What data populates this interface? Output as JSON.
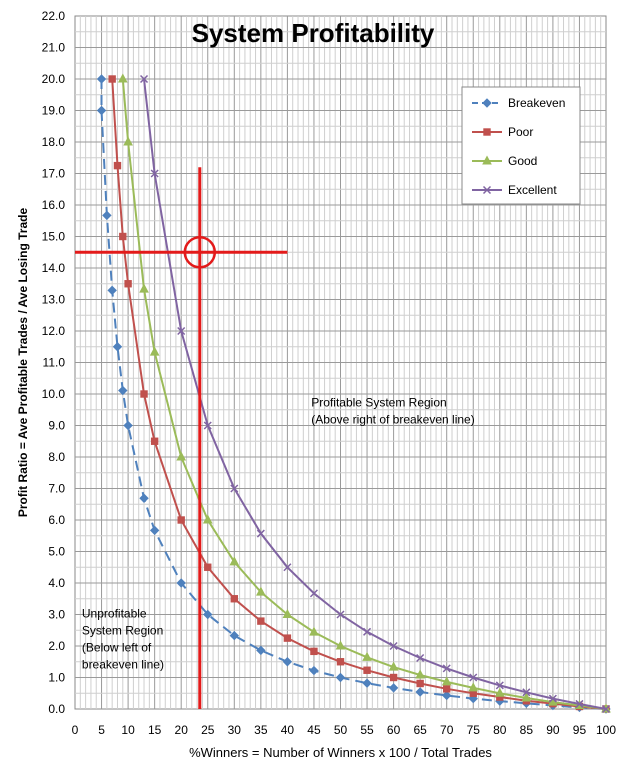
{
  "chart_data": {
    "type": "line",
    "title": "System Profitability",
    "xlabel": "%Winners = Number of Winners x 100 / Total Trades",
    "ylabel": "Profit Ratio  = Ave Profitable Trades / Ave Losing Trade",
    "xlim": [
      0,
      100
    ],
    "ylim": [
      0,
      22
    ],
    "x_ticks": [
      0,
      5,
      10,
      15,
      20,
      25,
      30,
      35,
      40,
      45,
      50,
      55,
      60,
      65,
      70,
      75,
      80,
      85,
      90,
      95,
      100
    ],
    "y_ticks": [
      0,
      1,
      2,
      3,
      4,
      5,
      6,
      7,
      8,
      9,
      10,
      11,
      12,
      13,
      14,
      15,
      16,
      17,
      18,
      19,
      20,
      21,
      22
    ],
    "y_tick_decimals": 1,
    "grid": true,
    "legend_position": "top-right",
    "series": [
      {
        "name": "Breakeven",
        "color": "#4f81bd",
        "marker": "diamond",
        "dashed": true,
        "points": [
          [
            5,
            20.0
          ],
          [
            5,
            19.0
          ],
          [
            6,
            15.67
          ],
          [
            7,
            13.29
          ],
          [
            8,
            11.5
          ],
          [
            9,
            10.11
          ],
          [
            10,
            9.0
          ],
          [
            13,
            6.69
          ],
          [
            15,
            5.67
          ],
          [
            20,
            4.0
          ],
          [
            25,
            3.0
          ],
          [
            30,
            2.33
          ],
          [
            35,
            1.86
          ],
          [
            40,
            1.5
          ],
          [
            45,
            1.22
          ],
          [
            50,
            1.0
          ],
          [
            55,
            0.82
          ],
          [
            60,
            0.67
          ],
          [
            65,
            0.54
          ],
          [
            70,
            0.43
          ],
          [
            75,
            0.33
          ],
          [
            80,
            0.25
          ],
          [
            85,
            0.18
          ],
          [
            90,
            0.11
          ],
          [
            95,
            0.05
          ],
          [
            100,
            0.0
          ]
        ]
      },
      {
        "name": "Poor",
        "color": "#c0504d",
        "marker": "square",
        "dashed": false,
        "points": [
          [
            7,
            20.0
          ],
          [
            8,
            17.25
          ],
          [
            9,
            15.0
          ],
          [
            10,
            13.5
          ],
          [
            13,
            10.0
          ],
          [
            15,
            8.5
          ],
          [
            20,
            6.0
          ],
          [
            25,
            4.5
          ],
          [
            30,
            3.5
          ],
          [
            35,
            2.79
          ],
          [
            40,
            2.25
          ],
          [
            45,
            1.83
          ],
          [
            50,
            1.5
          ],
          [
            55,
            1.23
          ],
          [
            60,
            1.0
          ],
          [
            65,
            0.81
          ],
          [
            70,
            0.64
          ],
          [
            75,
            0.5
          ],
          [
            80,
            0.38
          ],
          [
            85,
            0.26
          ],
          [
            90,
            0.17
          ],
          [
            95,
            0.08
          ],
          [
            100,
            0.0
          ]
        ]
      },
      {
        "name": "Good",
        "color": "#9bbb59",
        "marker": "triangle",
        "dashed": false,
        "points": [
          [
            9,
            20.0
          ],
          [
            10,
            18.0
          ],
          [
            13,
            13.33
          ],
          [
            15,
            11.33
          ],
          [
            20,
            8.0
          ],
          [
            25,
            6.0
          ],
          [
            30,
            4.67
          ],
          [
            35,
            3.71
          ],
          [
            40,
            3.0
          ],
          [
            45,
            2.44
          ],
          [
            50,
            2.0
          ],
          [
            55,
            1.64
          ],
          [
            60,
            1.33
          ],
          [
            65,
            1.08
          ],
          [
            70,
            0.86
          ],
          [
            75,
            0.67
          ],
          [
            80,
            0.5
          ],
          [
            85,
            0.35
          ],
          [
            90,
            0.22
          ],
          [
            95,
            0.11
          ],
          [
            100,
            0.0
          ]
        ]
      },
      {
        "name": "Excellent",
        "color": "#8064a2",
        "marker": "x",
        "dashed": false,
        "points": [
          [
            13,
            20.0
          ],
          [
            15,
            17.0
          ],
          [
            20,
            12.0
          ],
          [
            25,
            9.0
          ],
          [
            30,
            7.0
          ],
          [
            35,
            5.57
          ],
          [
            40,
            4.5
          ],
          [
            45,
            3.67
          ],
          [
            50,
            3.0
          ],
          [
            55,
            2.45
          ],
          [
            60,
            2.0
          ],
          [
            65,
            1.62
          ],
          [
            70,
            1.29
          ],
          [
            75,
            1.0
          ],
          [
            80,
            0.75
          ],
          [
            85,
            0.53
          ],
          [
            90,
            0.33
          ],
          [
            95,
            0.16
          ],
          [
            100,
            0.0
          ]
        ]
      }
    ],
    "crosshair": {
      "x": 23.5,
      "y": 14.5,
      "x_from": 0,
      "x_to": 40,
      "y_from": 0,
      "y_to": 17.2,
      "color": "#e31a1a"
    },
    "annotations": [
      {
        "name": "profitable-region-label",
        "lines": [
          "Profitable System Region",
          "(Above right of breakeven line)"
        ],
        "x": 44.5,
        "y": 9.6
      },
      {
        "name": "unprofitable-region-label",
        "lines": [
          "Unprofitable",
          "System Region",
          "(Below left of",
          "breakeven line)"
        ],
        "x": 1.3,
        "y": 2.9
      }
    ]
  }
}
